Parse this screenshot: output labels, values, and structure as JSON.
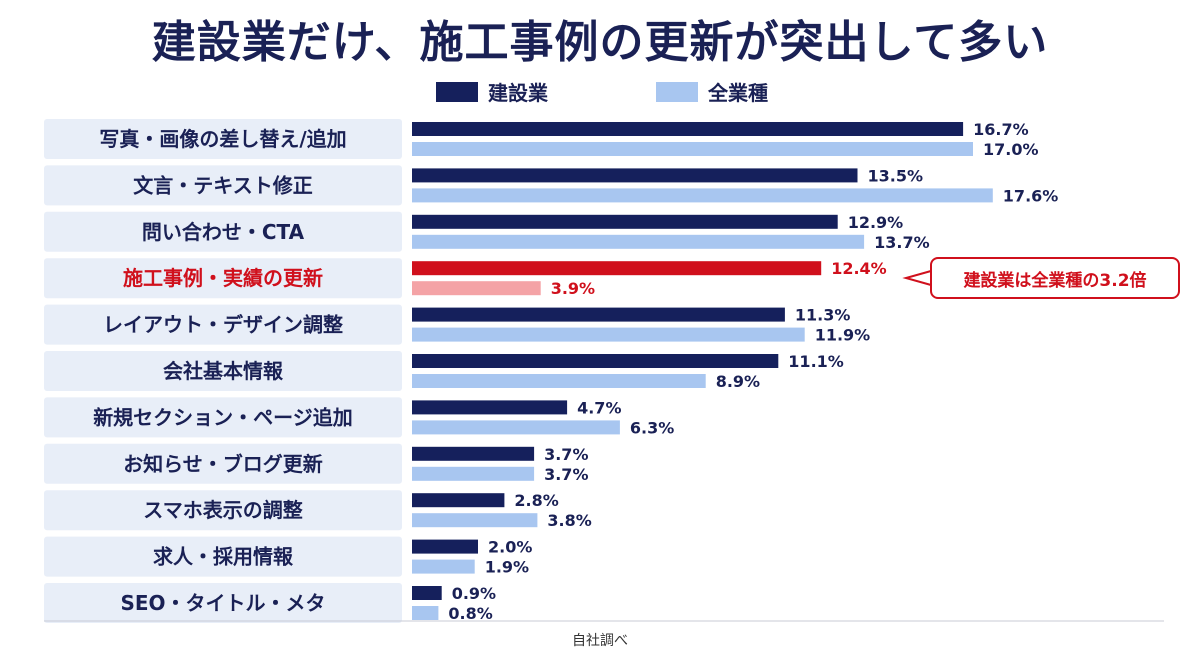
{
  "title": "建設業だけ、施工事例の更新が突出して多い",
  "source": "自社調べ",
  "callout": "建設業は全業種の3.2倍",
  "colors": {
    "construction": "#15205c",
    "all": "#a8c6f0",
    "highlight_construction": "#d0101c",
    "highlight_all": "#f4a3a6",
    "label_bg": "#e8eef8",
    "highlight_text": "#d0101c"
  },
  "chart_data": {
    "type": "bar",
    "orientation": "horizontal",
    "title": "建設業だけ、施工事例の更新が突出して多い",
    "legend_position": "top",
    "value_unit": "%",
    "categories": [
      "写真・画像の差し替え/追加",
      "文言・テキスト修正",
      "問い合わせ・CTA",
      "施工事例・実績の更新",
      "レイアウト・デザイン調整",
      "会社基本情報",
      "新規セクション・ページ追加",
      "お知らせ・ブログ更新",
      "スマホ表示の調整",
      "求人・採用情報",
      "SEO・タイトル・メタ"
    ],
    "highlight_index": 3,
    "series": [
      {
        "name": "建設業",
        "values": [
          16.7,
          13.5,
          12.9,
          12.4,
          11.3,
          11.1,
          4.7,
          3.7,
          2.8,
          2.0,
          0.9
        ],
        "labels": [
          "16.7%",
          "13.5%",
          "12.9%",
          "12.4%",
          "11.3%",
          "11.1%",
          "4.7%",
          "3.7%",
          "2.8%",
          "2.0%",
          "0.9%"
        ]
      },
      {
        "name": "全業種",
        "values": [
          17.0,
          17.6,
          13.7,
          3.9,
          11.9,
          8.9,
          6.3,
          3.7,
          3.8,
          1.9,
          0.8
        ],
        "labels": [
          "17.0%",
          "17.6%",
          "13.7%",
          "3.9%",
          "11.9%",
          "8.9%",
          "6.3%",
          "3.7%",
          "3.8%",
          "1.9%",
          "0.8%"
        ]
      }
    ]
  }
}
